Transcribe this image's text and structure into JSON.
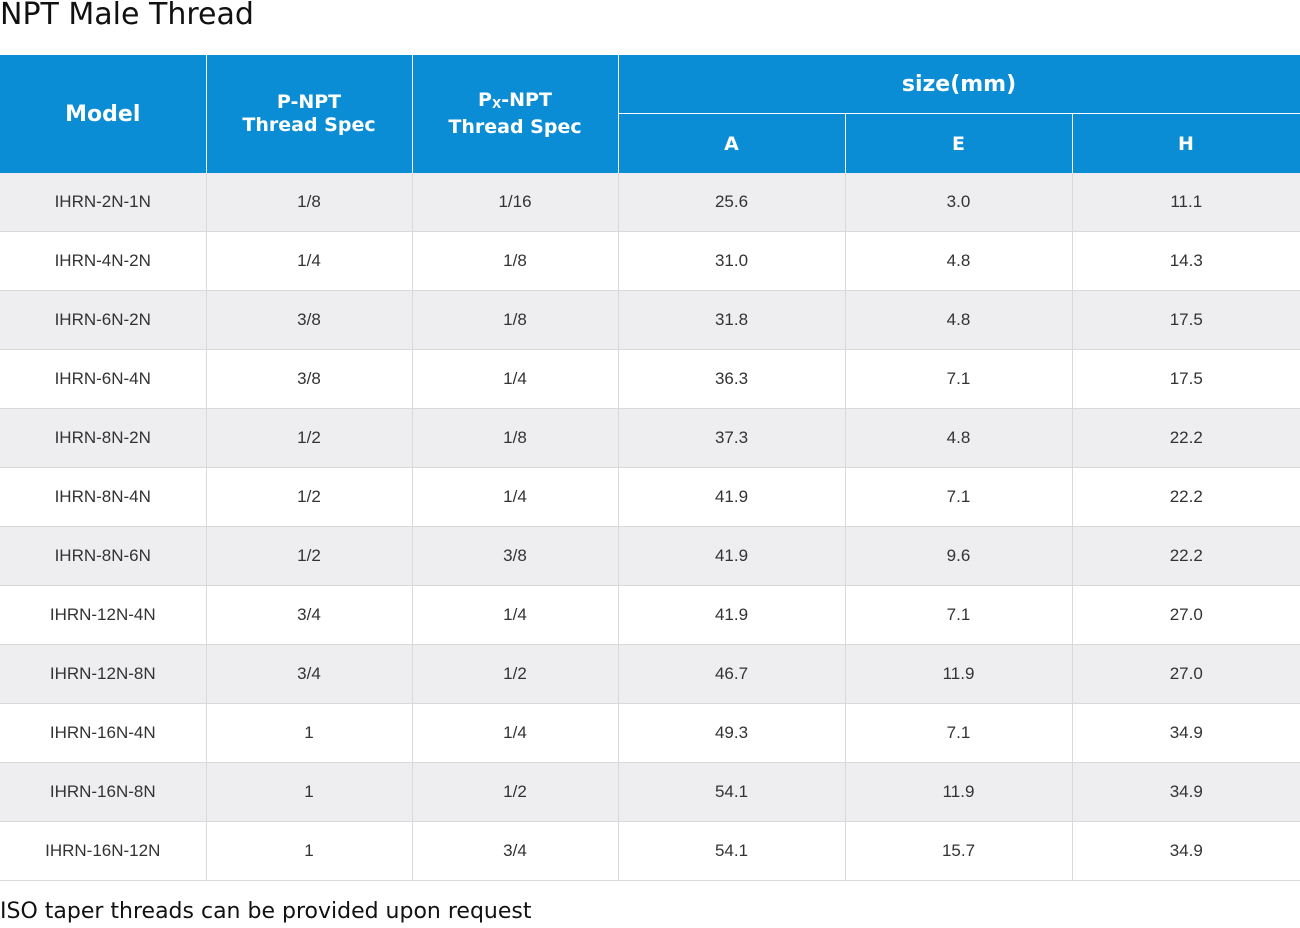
{
  "title": "NPT Male Thread",
  "header": {
    "model": "Model",
    "p_npt_line1": "P-NPT",
    "p_npt_line2": "Thread Spec",
    "px_npt_p": "P",
    "px_npt_x": "X",
    "px_npt_rest": "-NPT",
    "px_npt_line2": "Thread Spec",
    "size": "size(mm)",
    "a": "A",
    "e": "E",
    "h": "H"
  },
  "rows": [
    {
      "model": "IHRN-2N-1N",
      "p": "1/8",
      "px": "1/16",
      "a": "25.6",
      "e": "3.0",
      "h": "11.1"
    },
    {
      "model": "IHRN-4N-2N",
      "p": "1/4",
      "px": "1/8",
      "a": "31.0",
      "e": "4.8",
      "h": "14.3"
    },
    {
      "model": "IHRN-6N-2N",
      "p": "3/8",
      "px": "1/8",
      "a": "31.8",
      "e": "4.8",
      "h": "17.5"
    },
    {
      "model": "IHRN-6N-4N",
      "p": "3/8",
      "px": "1/4",
      "a": "36.3",
      "e": "7.1",
      "h": "17.5"
    },
    {
      "model": "IHRN-8N-2N",
      "p": "1/2",
      "px": "1/8",
      "a": "37.3",
      "e": "4.8",
      "h": "22.2"
    },
    {
      "model": "IHRN-8N-4N",
      "p": "1/2",
      "px": "1/4",
      "a": "41.9",
      "e": "7.1",
      "h": "22.2"
    },
    {
      "model": "IHRN-8N-6N",
      "p": "1/2",
      "px": "3/8",
      "a": "41.9",
      "e": "9.6",
      "h": "22.2"
    },
    {
      "model": "IHRN-12N-4N",
      "p": "3/4",
      "px": "1/4",
      "a": "41.9",
      "e": "7.1",
      "h": "27.0"
    },
    {
      "model": "IHRN-12N-8N",
      "p": "3/4",
      "px": "1/2",
      "a": "46.7",
      "e": "11.9",
      "h": "27.0"
    },
    {
      "model": "IHRN-16N-4N",
      "p": "1",
      "px": "1/4",
      "a": "49.3",
      "e": "7.1",
      "h": "34.9"
    },
    {
      "model": "IHRN-16N-8N",
      "p": "1",
      "px": "1/2",
      "a": "54.1",
      "e": "11.9",
      "h": "34.9"
    },
    {
      "model": "IHRN-16N-12N",
      "p": "1",
      "px": "3/4",
      "a": "54.1",
      "e": "15.7",
      "h": "34.9"
    }
  ],
  "footnote": "ISO taper threads can be provided upon request",
  "colors": {
    "header_bg": "#0b8dd6",
    "row_alt_bg": "#eeeef0",
    "row_bg": "#ffffff",
    "grid": "#d9d9d9"
  }
}
